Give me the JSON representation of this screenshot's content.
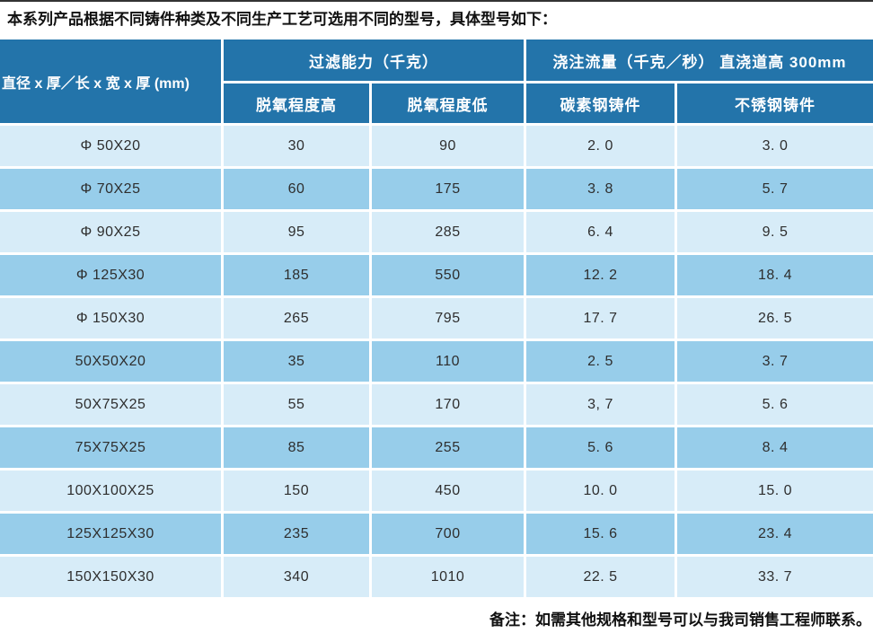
{
  "page": {
    "intro": "本系列产品根据不同铸件种类及不同生产工艺可选用不同的型号，具体型号如下：",
    "note": "备注：如需其他规格和型号可以与我司销售工程师联系。"
  },
  "colors": {
    "header_bg": "#2374aa",
    "header_text": "#ffffff",
    "row_light": "#d7ecf8",
    "row_dark": "#97cdea",
    "body_text": "#2e2e2e",
    "top_rule": "#333333"
  },
  "table": {
    "size_header": "直径 x 厚／长 x 宽 x 厚 (mm)",
    "group_headers": [
      "过滤能力（千克）",
      "浇注流量（千克／秒） 直浇道高 300mm"
    ],
    "sub_headers": [
      "脱氧程度高",
      "脱氧程度低",
      "碳素钢铸件",
      "不锈钢铸件"
    ],
    "rows": [
      {
        "size": "Φ 50X20",
        "values": [
          "30",
          "90",
          "2. 0",
          "3. 0"
        ]
      },
      {
        "size": "Φ 70X25",
        "values": [
          "60",
          "175",
          "3. 8",
          "5. 7"
        ]
      },
      {
        "size": "Φ 90X25",
        "values": [
          "95",
          "285",
          "6. 4",
          "9. 5"
        ]
      },
      {
        "size": "Φ 125X30",
        "values": [
          "185",
          "550",
          "12. 2",
          "18. 4"
        ]
      },
      {
        "size": "Φ 150X30",
        "values": [
          "265",
          "795",
          "17. 7",
          "26. 5"
        ]
      },
      {
        "size": "50X50X20",
        "values": [
          "35",
          "110",
          "2. 5",
          "3. 7"
        ]
      },
      {
        "size": "50X75X25",
        "values": [
          "55",
          "170",
          "3, 7",
          "5. 6"
        ]
      },
      {
        "size": "75X75X25",
        "values": [
          "85",
          "255",
          "5. 6",
          "8. 4"
        ]
      },
      {
        "size": "100X100X25",
        "values": [
          "150",
          "450",
          "10. 0",
          "15. 0"
        ]
      },
      {
        "size": "125X125X30",
        "values": [
          "235",
          "700",
          "15. 6",
          "23. 4"
        ]
      },
      {
        "size": "150X150X30",
        "values": [
          "340",
          "1010",
          "22. 5",
          "33. 7"
        ]
      }
    ]
  }
}
